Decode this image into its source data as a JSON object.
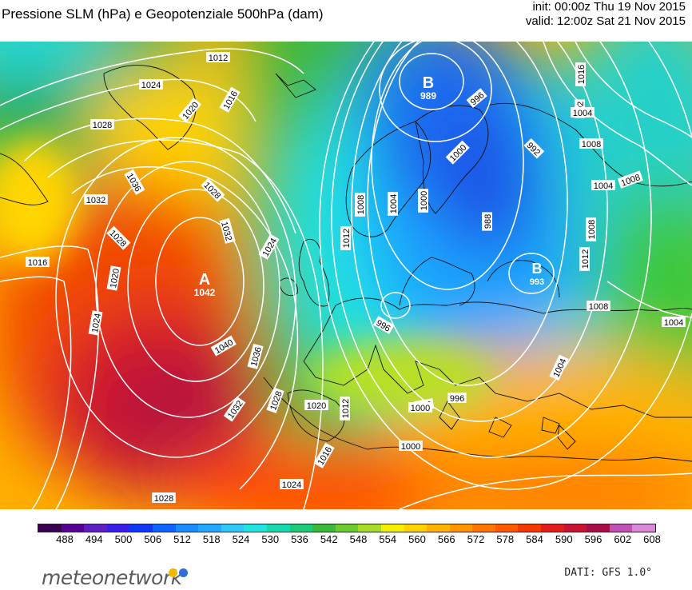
{
  "header": {
    "title": "Pressione SLM (hPa) e Geopotenziale 500hPa (dam)",
    "init": "init: 00:00z Thu 19 Nov 2015",
    "valid": "valid: 12:00z Sat 21 Nov 2015"
  },
  "pressure_centers": [
    {
      "symbol": "A",
      "value": "1042"
    },
    {
      "symbol": "B",
      "value": "989"
    },
    {
      "symbol": "B",
      "value": "993"
    }
  ],
  "isobar_labels": [
    "1012",
    "1024",
    "1020",
    "1016",
    "1028",
    "1036",
    "1032",
    "1028",
    "1024",
    "1032",
    "1028",
    "1016",
    "1020",
    "1024",
    "1040",
    "1036",
    "1032",
    "1028",
    "1020",
    "1012",
    "1016",
    "1024",
    "1028",
    "1012",
    "1008",
    "1004",
    "1000",
    "996",
    "992",
    "1004",
    "1008",
    "1004",
    "1000",
    "996",
    "988",
    "1000",
    "996",
    "992",
    "1004",
    "1008",
    "1012",
    "1016",
    "1008",
    "1004",
    "996",
    "1000",
    "1008"
  ],
  "colorbar": {
    "ticks": [
      "488",
      "494",
      "500",
      "506",
      "512",
      "518",
      "524",
      "530",
      "536",
      "542",
      "548",
      "554",
      "560",
      "566",
      "572",
      "578",
      "584",
      "590",
      "596",
      "602",
      "608"
    ],
    "colors": [
      "#3a0050",
      "#560091",
      "#5e1fc2",
      "#3b1ee6",
      "#1237f0",
      "#0f63ff",
      "#1a8cff",
      "#25a9ff",
      "#2fc8f5",
      "#22e3e0",
      "#18d8b0",
      "#1ec97a",
      "#3cb83c",
      "#6ecb2d",
      "#a8dc28",
      "#f5f000",
      "#ffd200",
      "#ffb300",
      "#ff9500",
      "#ff7700",
      "#ff5a00",
      "#f23a00",
      "#e01e1e",
      "#c81432",
      "#a80e46",
      "#c052b4",
      "#d98adb"
    ]
  },
  "branding": {
    "logo": "meteonetwork",
    "logo_dot_colors": [
      "#f5b800",
      "#2e6fd8"
    ],
    "source": "DATI: GFS 1.0°"
  }
}
